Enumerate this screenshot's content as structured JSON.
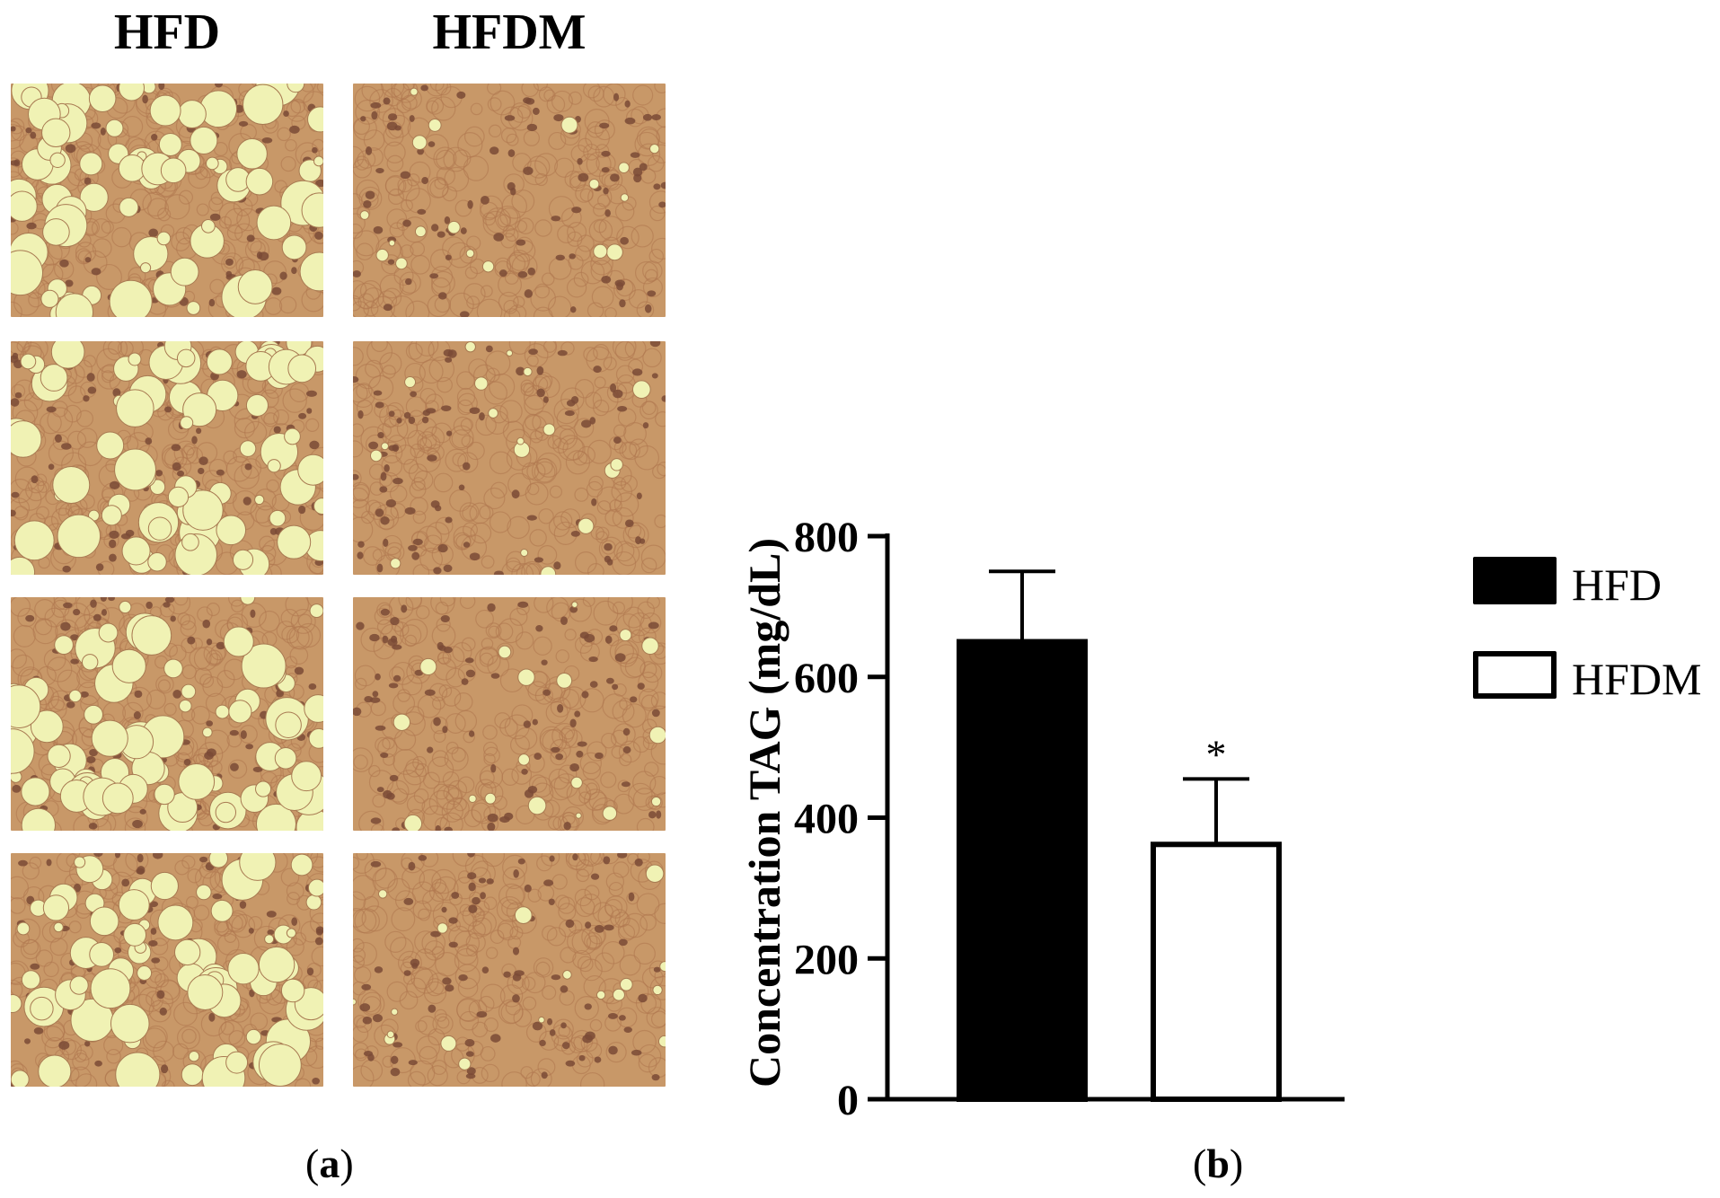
{
  "panel_a": {
    "column_headers": [
      "HFD",
      "HFDM"
    ],
    "image_rows": 4
  },
  "panel_labels": {
    "a": {
      "open": "(",
      "letter": "a",
      "close": ")"
    },
    "b": {
      "open": "(",
      "letter": "b",
      "close": ")"
    }
  },
  "colors": {
    "tissue_background": "#c89868",
    "lipid_droplet": "#f0f2b4",
    "nucleus": "#7a4a36",
    "bar_hfd_fill": "#000000",
    "bar_hfdm_fill": "#ffffff",
    "axis": "#000000"
  },
  "chart_data": {
    "type": "bar",
    "categories": [
      "HFD",
      "HFDM"
    ],
    "values": [
      650,
      362
    ],
    "error_upper": [
      750,
      455
    ],
    "significance": [
      "",
      "*"
    ],
    "title": "",
    "xlabel": "",
    "ylabel": "Concentration TAG (mg/dL)",
    "ylim": [
      0,
      800
    ],
    "yticks": [
      "0",
      "200",
      "400",
      "600",
      "800"
    ],
    "legend": {
      "placement": "right",
      "entries": [
        {
          "name": "HFD",
          "fill": "#000000"
        },
        {
          "name": "HFDM",
          "fill": "#ffffff"
        }
      ]
    },
    "grid": false
  }
}
